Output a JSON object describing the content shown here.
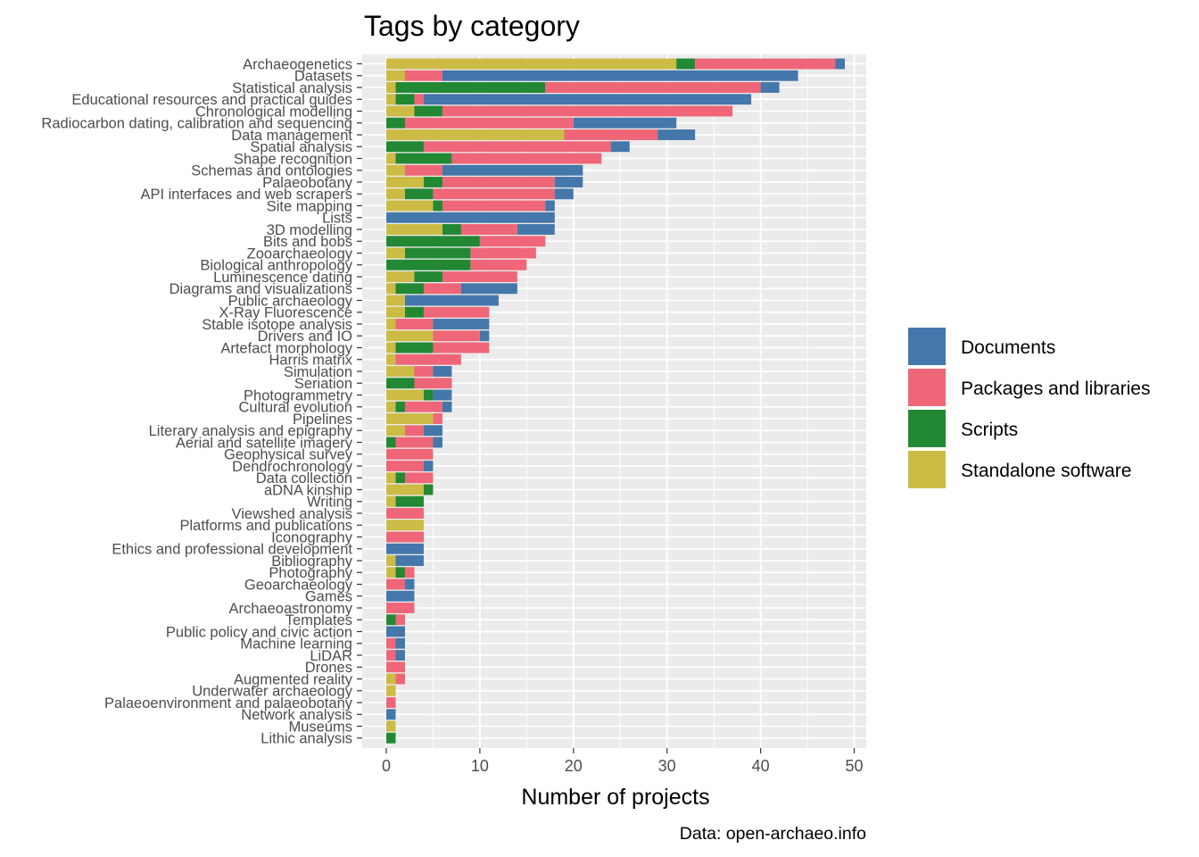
{
  "chart_data": {
    "type": "bar",
    "orientation": "horizontal",
    "stacked": true,
    "title": "Tags by category",
    "xlabel": "Number of projects",
    "ylabel": "",
    "caption": "Data: open-archaeo.info",
    "xlim": [
      0,
      51
    ],
    "xticks": [
      0,
      10,
      20,
      30,
      40,
      50
    ],
    "grid": true,
    "legend_position": "right",
    "legend_order": [
      "Documents",
      "Packages and libraries",
      "Scripts",
      "Standalone software"
    ],
    "stack_order": [
      "Standalone software",
      "Scripts",
      "Packages and libraries",
      "Documents"
    ],
    "colors": {
      "Documents": "#4477aa",
      "Packages and libraries": "#ee6677",
      "Scripts": "#228833",
      "Standalone software": "#ccbb44",
      "panel_background": "#ebebeb",
      "gridline": "#ffffff"
    },
    "categories": [
      "Archaeogenetics",
      "Datasets",
      "Statistical analysis",
      "Educational resources and practical guides",
      "Chronological modelling",
      "Radiocarbon dating, calibration and sequencing",
      "Data management",
      "Spatial analysis",
      "Shape recognition",
      "Schemas and ontologies",
      "Palaeobotany",
      "API interfaces and web scrapers",
      "Site mapping",
      "Lists",
      "3D modelling",
      "Bits and bobs",
      "Zooarchaeology",
      "Biological anthropology",
      "Luminescence dating",
      "Diagrams and visualizations",
      "Public archaeology",
      "X-Ray Fluorescence",
      "Stable isotope analysis",
      "Drivers and IO",
      "Artefact morphology",
      "Harris matrix",
      "Simulation",
      "Seriation",
      "Photogrammetry",
      "Cultural evolution",
      "Pipelines",
      "Literary analysis and epigraphy",
      "Aerial and satellite imagery",
      "Geophysical survey",
      "Dendrochronology",
      "Data collection",
      "aDNA kinship",
      "Writing",
      "Viewshed analysis",
      "Platforms and publications",
      "Iconography",
      "Ethics and professional development",
      "Bibliography",
      "Photography",
      "Geoarchaeology",
      "Games",
      "Archaeoastronomy",
      "Templates",
      "Public policy and civic action",
      "Machine learning",
      "LiDAR",
      "Drones",
      "Augmented reality",
      "Underwater archaeology",
      "Palaeoenvironment and palaeobotany",
      "Network analysis",
      "Museums",
      "Lithic analysis"
    ],
    "series": [
      {
        "name": "Standalone software",
        "values": [
          31,
          2,
          1,
          1,
          3,
          0,
          19,
          0,
          1,
          2,
          4,
          2,
          5,
          0,
          6,
          0,
          2,
          0,
          3,
          1,
          2,
          2,
          1,
          5,
          1,
          1,
          3,
          0,
          4,
          1,
          5,
          2,
          0,
          0,
          0,
          1,
          4,
          1,
          0,
          4,
          0,
          0,
          1,
          1,
          0,
          0,
          0,
          0,
          0,
          0,
          0,
          0,
          1,
          1,
          0,
          0,
          1,
          0
        ]
      },
      {
        "name": "Scripts",
        "values": [
          2,
          0,
          16,
          2,
          3,
          2,
          0,
          4,
          6,
          0,
          2,
          3,
          1,
          0,
          2,
          10,
          7,
          9,
          3,
          3,
          0,
          2,
          0,
          0,
          4,
          0,
          0,
          3,
          1,
          1,
          0,
          0,
          1,
          0,
          0,
          1,
          1,
          3,
          0,
          0,
          0,
          0,
          0,
          1,
          0,
          0,
          0,
          1,
          0,
          0,
          0,
          0,
          0,
          0,
          0,
          0,
          0,
          1
        ]
      },
      {
        "name": "Packages and libraries",
        "values": [
          15,
          4,
          23,
          1,
          31,
          18,
          10,
          20,
          16,
          4,
          12,
          13,
          11,
          0,
          6,
          7,
          7,
          6,
          8,
          4,
          0,
          7,
          4,
          5,
          6,
          7,
          2,
          4,
          0,
          4,
          1,
          2,
          4,
          5,
          4,
          3,
          0,
          0,
          4,
          0,
          4,
          0,
          0,
          1,
          2,
          0,
          3,
          1,
          0,
          1,
          1,
          2,
          1,
          0,
          1,
          0,
          0,
          0
        ]
      },
      {
        "name": "Documents",
        "values": [
          1,
          38,
          2,
          35,
          0,
          11,
          4,
          2,
          0,
          15,
          3,
          2,
          1,
          18,
          4,
          0,
          0,
          0,
          0,
          6,
          10,
          0,
          6,
          1,
          0,
          0,
          2,
          0,
          2,
          1,
          0,
          2,
          1,
          0,
          1,
          0,
          0,
          0,
          0,
          0,
          0,
          4,
          3,
          0,
          1,
          3,
          0,
          0,
          2,
          1,
          1,
          0,
          0,
          0,
          0,
          1,
          0,
          0
        ]
      }
    ]
  }
}
